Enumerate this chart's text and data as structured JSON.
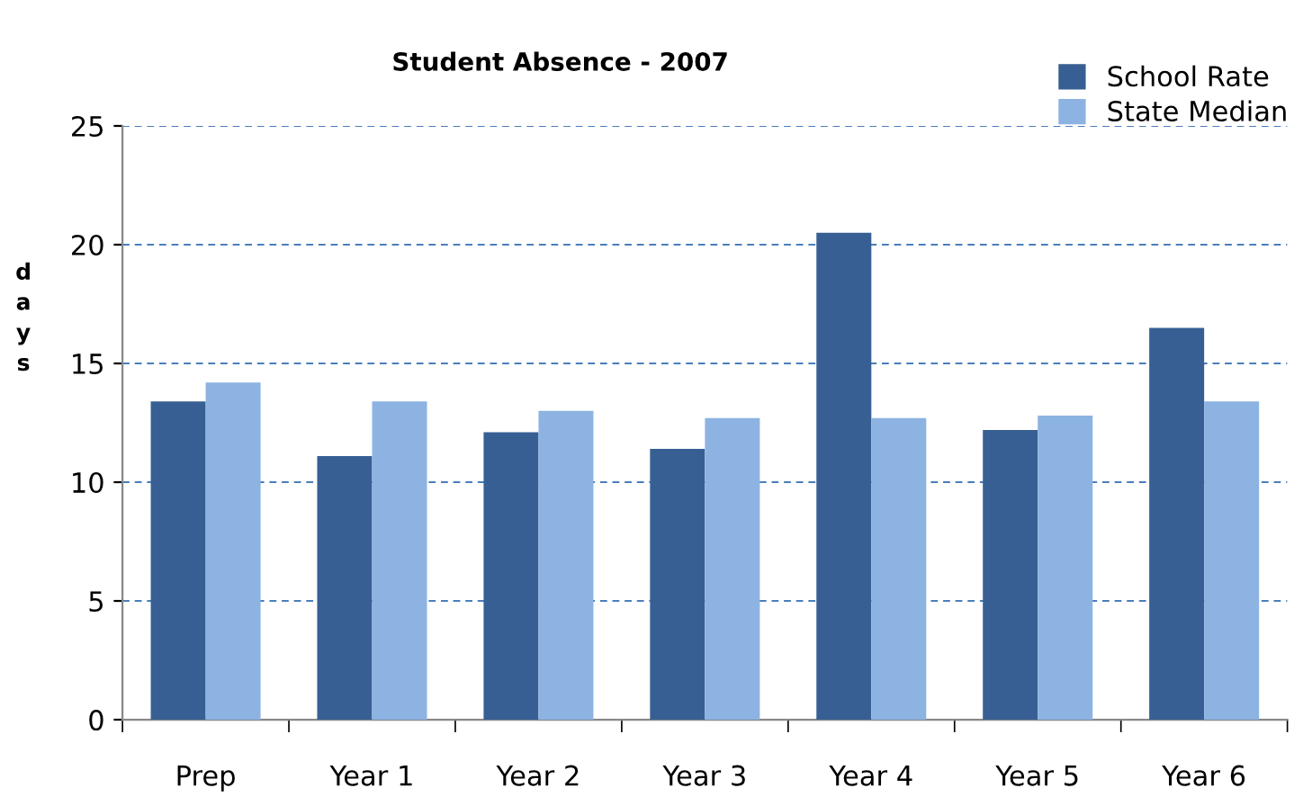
{
  "chart_data": {
    "type": "bar",
    "title": "Student Absence - 2007",
    "ylabel": "days",
    "categories": [
      "Prep",
      "Year 1",
      "Year 2",
      "Year 3",
      "Year 4",
      "Year 5",
      "Year 6"
    ],
    "series": [
      {
        "name": "School Rate",
        "color": "#375f93",
        "values": [
          13.4,
          11.1,
          12.1,
          11.4,
          20.5,
          12.2,
          16.5
        ]
      },
      {
        "name": "State Median",
        "color": "#8db3e2",
        "values": [
          14.2,
          13.4,
          13.0,
          12.7,
          12.7,
          12.8,
          13.4
        ]
      }
    ],
    "ylim": [
      0,
      25
    ],
    "yticks": [
      0,
      5,
      10,
      15,
      20,
      25
    ],
    "grid": "y",
    "legend": "top right"
  }
}
